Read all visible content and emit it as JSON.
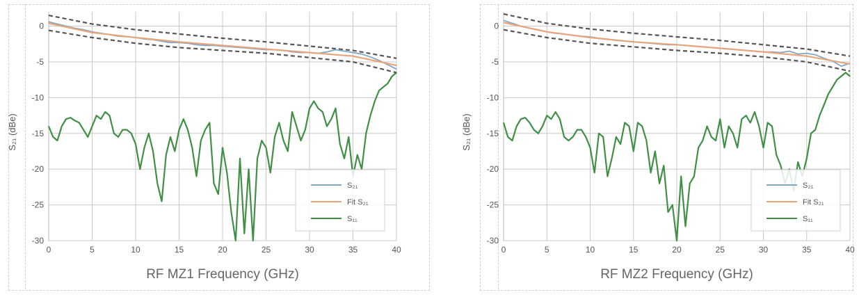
{
  "colors": {
    "s21": "#7fa6c4",
    "fit": "#e8a57c",
    "s11": "#3f8f45",
    "s11_light": "#9cc79f",
    "bounds": "#555555",
    "grid": "#c8c8c8",
    "axis_text": "#555555",
    "xlabel_text": "#666666"
  },
  "chart_data": [
    {
      "type": "line",
      "xlabel": "RF MZ1 Frequency (GHz)",
      "ylabel": "S₂₁ (dBe)",
      "xlim": [
        0,
        40
      ],
      "ylim": [
        -30,
        2
      ],
      "xticks": [
        0,
        5,
        10,
        15,
        20,
        25,
        30,
        35,
        40
      ],
      "yticks": [
        0,
        -5,
        -10,
        -15,
        -20,
        -25,
        -30
      ],
      "grid": true,
      "legend": {
        "position": "bottom-right",
        "entries": [
          {
            "label": "S₂₁",
            "series": "s21"
          },
          {
            "label": "Fit S₂₁",
            "series": "fit"
          },
          {
            "label": "S₁₁",
            "series": "s11"
          }
        ]
      },
      "series": [
        {
          "name": "S₂₁",
          "key": "s21",
          "x": [
            0,
            1,
            2,
            3,
            4,
            5,
            6,
            7,
            8,
            9,
            10,
            11,
            12,
            13,
            14,
            15,
            16,
            17,
            18,
            19,
            20,
            21,
            22,
            23,
            24,
            25,
            26,
            27,
            28,
            29,
            30,
            31,
            32,
            33,
            34,
            35,
            36,
            37,
            38,
            39,
            40
          ],
          "y": [
            0.6,
            0.3,
            0,
            -0.3,
            -0.5,
            -0.8,
            -1,
            -1.2,
            -1.4,
            -1.5,
            -1.6,
            -1.8,
            -1.9,
            -2.1,
            -2.3,
            -2.3,
            -2.4,
            -2.6,
            -2.7,
            -2.7,
            -2.8,
            -2.9,
            -3,
            -3.1,
            -3.2,
            -3.3,
            -3.3,
            -3.4,
            -3.6,
            -3.7,
            -3.7,
            -3.8,
            -3.6,
            -3.3,
            -3.5,
            -3.7,
            -3.9,
            -4.3,
            -4.8,
            -5.4,
            -6
          ]
        },
        {
          "name": "Fit S₂₁",
          "key": "fit",
          "x": [
            0,
            5,
            10,
            15,
            20,
            25,
            30,
            35,
            40
          ],
          "y": [
            0.4,
            -0.9,
            -1.6,
            -2.2,
            -2.7,
            -3.2,
            -3.7,
            -4.2,
            -5.5
          ]
        },
        {
          "key": "upper_bound",
          "x": [
            0,
            5,
            10,
            15,
            20,
            25,
            30,
            35,
            40
          ],
          "y": [
            1.5,
            0.3,
            -0.5,
            -1.1,
            -1.7,
            -2.2,
            -2.8,
            -3.4,
            -4.5
          ]
        },
        {
          "key": "lower_bound",
          "x": [
            0,
            5,
            10,
            15,
            20,
            25,
            30,
            35,
            40
          ],
          "y": [
            -0.6,
            -1.6,
            -2.4,
            -3,
            -3.4,
            -3.8,
            -4.4,
            -5,
            -6.5
          ]
        },
        {
          "name": "S₁₁",
          "key": "s11",
          "x": [
            0,
            0.5,
            1,
            1.5,
            2,
            2.5,
            3,
            3.5,
            4,
            4.5,
            5,
            5.5,
            6,
            6.5,
            7,
            7.5,
            8,
            8.5,
            9,
            9.5,
            10,
            10.5,
            11,
            11.5,
            12,
            12.5,
            13,
            13.5,
            14,
            14.5,
            15,
            15.5,
            16,
            16.5,
            17,
            17.5,
            18,
            18.5,
            19,
            19.5,
            20,
            20.5,
            21,
            21.5,
            22,
            22.5,
            23,
            23.5,
            24,
            24.5,
            25,
            25.5,
            26,
            26.5,
            27,
            27.5,
            28,
            28.5,
            29,
            29.5,
            30,
            30.5,
            31,
            31.5,
            32,
            32.5,
            33,
            33.5,
            34,
            34.5,
            35,
            35.5,
            36,
            36.5,
            37,
            37.5,
            38,
            38.5,
            39,
            39.5,
            40
          ],
          "y": [
            -14,
            -15.5,
            -16,
            -14,
            -13,
            -12.8,
            -13.2,
            -13.5,
            -14.5,
            -15.5,
            -14,
            -12.5,
            -13,
            -12,
            -12.5,
            -15,
            -15.5,
            -14.5,
            -14.5,
            -15,
            -16.5,
            -20,
            -17,
            -15,
            -17.5,
            -22,
            -24.5,
            -18,
            -15.5,
            -17.5,
            -14.5,
            -13,
            -14.5,
            -17,
            -21,
            -16,
            -14.5,
            -13.5,
            -22,
            -23.5,
            -17,
            -20.5,
            -26,
            -30,
            -18.5,
            -29,
            -20,
            -30,
            -18.5,
            -16,
            -17,
            -20.5,
            -15.5,
            -13.5,
            -16,
            -17.5,
            -12,
            -14,
            -16,
            -14.5,
            -11.5,
            -10.5,
            -11.5,
            -12,
            -14,
            -13,
            -11.5,
            -16.5,
            -18.5,
            -15.5,
            -21,
            -18,
            -20,
            -15,
            -12.5,
            -10.5,
            -9,
            -8.5,
            -8,
            -7,
            -6.5
          ]
        }
      ]
    },
    {
      "type": "line",
      "xlabel": "RF MZ2 Frequency (GHz)",
      "ylabel": "S₂₁ (dBe)",
      "xlim": [
        0,
        40
      ],
      "ylim": [
        -30,
        2
      ],
      "xticks": [
        0,
        5,
        10,
        15,
        20,
        25,
        30,
        35,
        40
      ],
      "yticks": [
        0,
        -5,
        -10,
        -15,
        -20,
        -25,
        -30
      ],
      "grid": true,
      "legend": {
        "position": "bottom-right",
        "entries": [
          {
            "label": "S₂₁",
            "series": "s21"
          },
          {
            "label": "Fit S₂₁",
            "series": "fit"
          },
          {
            "label": "S₁₁",
            "series": "s11"
          }
        ]
      },
      "series": [
        {
          "name": "S₂₁",
          "key": "s21",
          "x": [
            0,
            1,
            2,
            3,
            4,
            5,
            6,
            7,
            8,
            9,
            10,
            11,
            12,
            13,
            14,
            15,
            16,
            17,
            18,
            19,
            20,
            21,
            22,
            23,
            24,
            25,
            26,
            27,
            28,
            29,
            30,
            31,
            32,
            33,
            34,
            35,
            36,
            37,
            38,
            39,
            40
          ],
          "y": [
            0.8,
            0.4,
            0,
            -0.3,
            -0.5,
            -0.8,
            -1,
            -1.1,
            -1.3,
            -1.4,
            -1.5,
            -1.7,
            -1.8,
            -2,
            -2.1,
            -2.2,
            -2.3,
            -2.4,
            -2.5,
            -2.6,
            -2.6,
            -2.7,
            -2.8,
            -2.9,
            -3,
            -3.1,
            -3.2,
            -3.3,
            -3.4,
            -3.5,
            -3.6,
            -3.6,
            -3.7,
            -3.5,
            -3.9,
            -3.8,
            -4,
            -4.5,
            -4.9,
            -5.6,
            -5.2
          ]
        },
        {
          "name": "Fit S₂₁",
          "key": "fit",
          "x": [
            0,
            5,
            10,
            15,
            20,
            25,
            30,
            35,
            40
          ],
          "y": [
            0.5,
            -0.8,
            -1.6,
            -2.2,
            -2.6,
            -3.1,
            -3.6,
            -4.2,
            -5.3
          ]
        },
        {
          "key": "upper_bound",
          "x": [
            0,
            5,
            10,
            15,
            20,
            25,
            30,
            35,
            40
          ],
          "y": [
            1.7,
            0.4,
            -0.4,
            -1,
            -1.5,
            -2,
            -2.6,
            -3.2,
            -4.2
          ]
        },
        {
          "key": "lower_bound",
          "x": [
            0,
            5,
            10,
            15,
            20,
            25,
            30,
            35,
            40
          ],
          "y": [
            -0.5,
            -1.6,
            -2.4,
            -2.9,
            -3.4,
            -3.8,
            -4.3,
            -5,
            -6.3
          ]
        },
        {
          "name": "S₁₁",
          "key": "s11",
          "x": [
            0,
            0.5,
            1,
            1.5,
            2,
            2.5,
            3,
            3.5,
            4,
            4.5,
            5,
            5.5,
            6,
            6.5,
            7,
            7.5,
            8,
            8.5,
            9,
            9.5,
            10,
            10.5,
            11,
            11.5,
            12,
            12.5,
            13,
            13.5,
            14,
            14.5,
            15,
            15.5,
            16,
            16.5,
            17,
            17.5,
            18,
            18.5,
            19,
            19.5,
            20,
            20.5,
            21,
            21.5,
            22,
            22.5,
            23,
            23.5,
            24,
            24.5,
            25,
            25.5,
            26,
            26.5,
            27,
            27.5,
            28,
            28.5,
            29,
            29.5,
            30,
            30.5,
            31,
            31.5,
            32,
            32.5,
            33,
            33.5,
            34,
            34.5,
            35,
            35.5,
            36,
            36.5,
            37,
            37.5,
            38,
            38.5,
            39,
            39.5,
            40
          ],
          "y": [
            -13.5,
            -15.5,
            -16,
            -14,
            -13,
            -12.8,
            -13.5,
            -14.5,
            -15,
            -14,
            -12.5,
            -13,
            -12,
            -13,
            -15.5,
            -16,
            -15.5,
            -14.5,
            -14.5,
            -15.5,
            -17,
            -20.5,
            -15,
            -15.5,
            -21,
            -18.5,
            -15.5,
            -16.5,
            -13.5,
            -14,
            -17.5,
            -13.5,
            -14,
            -16,
            -20.5,
            -17.5,
            -22,
            -19.5,
            -26,
            -25,
            -30,
            -21,
            -28,
            -22,
            -21,
            -17,
            -16,
            -14,
            -15.5,
            -16,
            -13,
            -17,
            -14,
            -15,
            -17,
            -13,
            -12.5,
            -13.5,
            -12,
            -14,
            -17,
            -13.5,
            -14,
            -18,
            -19.5,
            -22,
            -20,
            -23,
            -19,
            -21,
            -18.5,
            -15,
            -14.5,
            -12.5,
            -11,
            -9.5,
            -8.5,
            -7.5,
            -7,
            -6.5,
            -7
          ]
        }
      ]
    }
  ]
}
